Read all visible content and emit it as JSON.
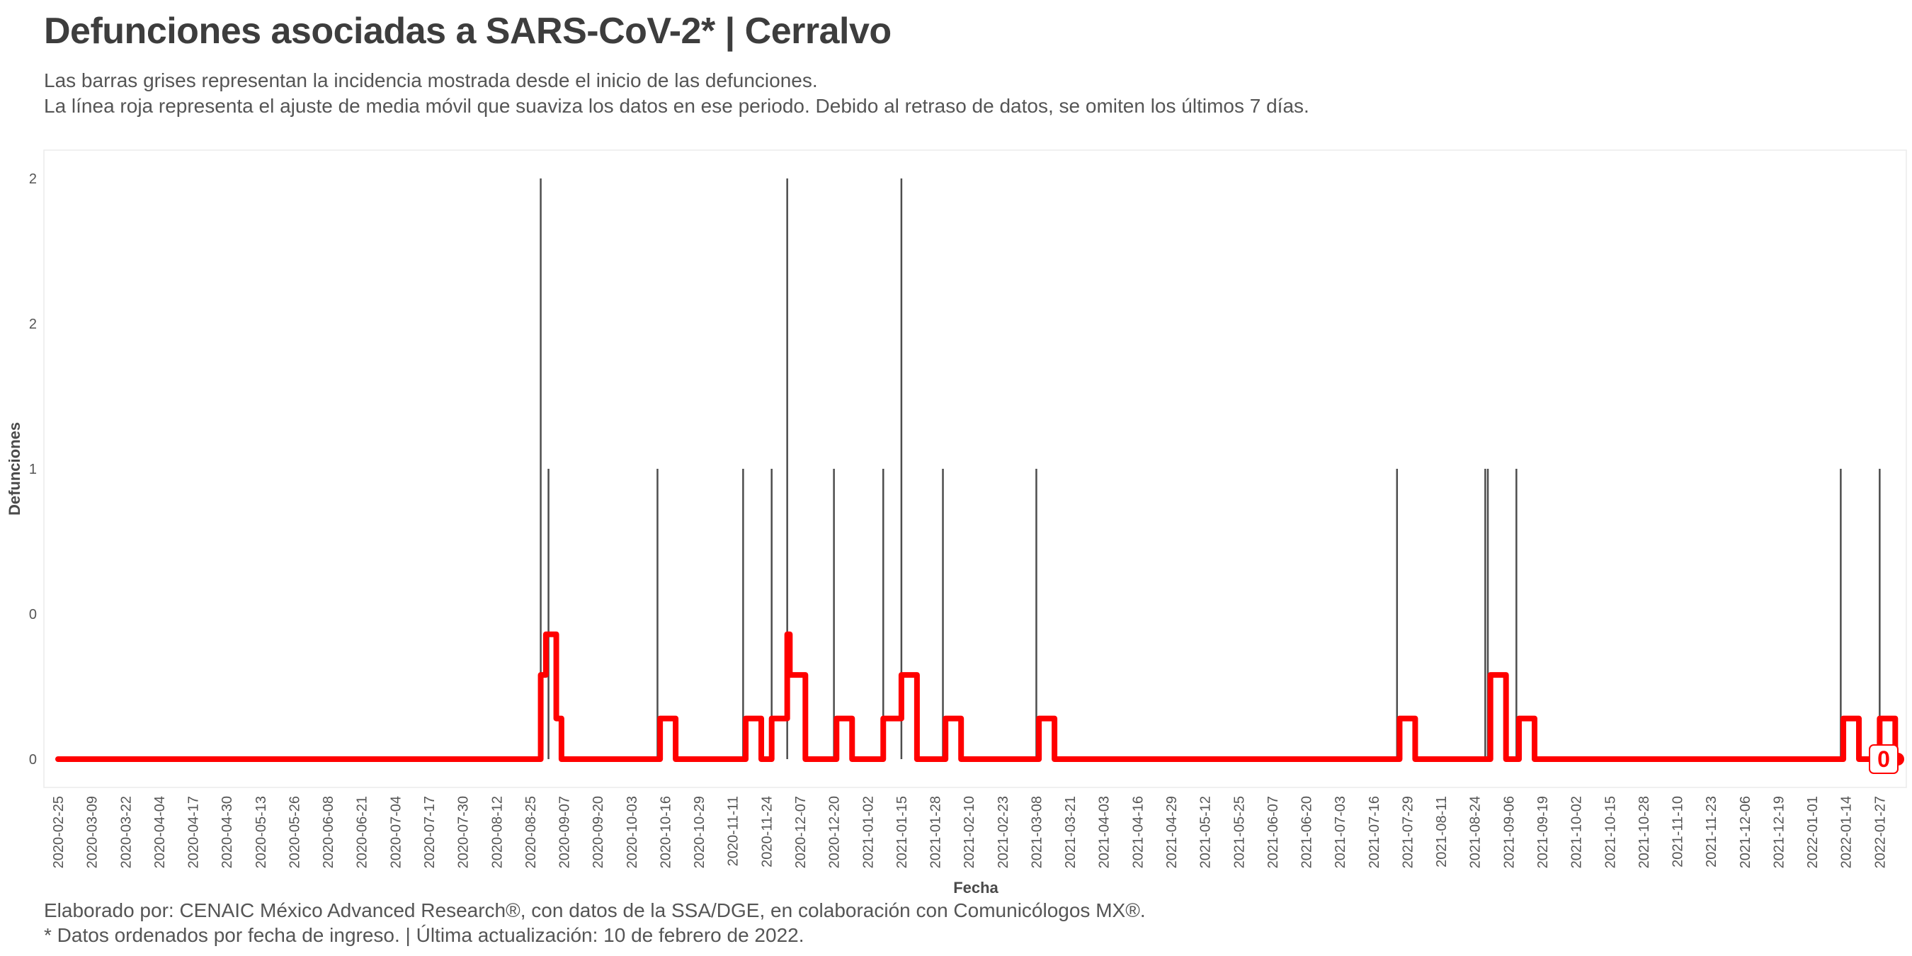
{
  "header": {
    "title": "Defunciones asociadas a SARS-CoV-2* | Cerralvo",
    "subtitle_line1": "Las barras grises representan la incidencia mostrada desde el inicio de las defunciones.",
    "subtitle_line2": "La línea roja representa el ajuste de media móvil que suaviza los datos en ese periodo. Debido al retraso de datos, se omiten los últimos 7 días."
  },
  "footer": {
    "caption_line1": "Elaborado por: CENAIC México Advanced Research®, con datos de la SSA/DGE, en colaboración con Comunicólogos MX®.",
    "caption_line2": "* Datos ordenados por fecha de ingreso. | Última actualización: 10 de febrero de 2022."
  },
  "colors": {
    "bars": "#4d4d4d",
    "smooth_line": "#ff0000",
    "panel_border": "#ebebeb"
  },
  "chart_data": {
    "type": "bar",
    "xlabel": "Fecha",
    "ylabel": "Defunciones",
    "x_range": [
      "2020-02-25",
      "2022-02-03"
    ],
    "ylim": [
      0,
      2
    ],
    "y_tick_values": [
      0,
      0.5,
      1,
      1.5,
      2
    ],
    "y_tick_labels": [
      "0",
      "0",
      "1",
      "2",
      "2"
    ],
    "x_tick_labels": [
      "2020-02-25",
      "2020-03-09",
      "2020-03-22",
      "2020-04-04",
      "2020-04-17",
      "2020-04-30",
      "2020-05-13",
      "2020-05-26",
      "2020-06-08",
      "2020-06-21",
      "2020-07-04",
      "2020-07-17",
      "2020-07-30",
      "2020-08-12",
      "2020-08-25",
      "2020-09-07",
      "2020-09-20",
      "2020-10-03",
      "2020-10-16",
      "2020-10-29",
      "2020-11-11",
      "2020-11-24",
      "2020-12-07",
      "2020-12-20",
      "2021-01-02",
      "2021-01-15",
      "2021-01-28",
      "2021-02-10",
      "2021-02-23",
      "2021-03-08",
      "2021-03-21",
      "2021-04-03",
      "2021-04-16",
      "2021-04-29",
      "2021-05-12",
      "2021-05-25",
      "2021-06-07",
      "2021-06-20",
      "2021-07-03",
      "2021-07-16",
      "2021-07-29",
      "2021-08-11",
      "2021-08-24",
      "2021-09-06",
      "2021-09-19",
      "2021-10-02",
      "2021-10-15",
      "2021-10-28",
      "2021-11-10",
      "2021-11-23",
      "2021-12-06",
      "2021-12-19",
      "2022-01-01",
      "2022-01-14",
      "2022-01-27"
    ],
    "grid": false,
    "bars": [
      {
        "x": "2020-08-29",
        "value": 2
      },
      {
        "x": "2020-09-01",
        "value": 1
      },
      {
        "x": "2020-10-13",
        "value": 1
      },
      {
        "x": "2020-11-15",
        "value": 1
      },
      {
        "x": "2020-11-26",
        "value": 1
      },
      {
        "x": "2020-12-02",
        "value": 2
      },
      {
        "x": "2020-12-20",
        "value": 1
      },
      {
        "x": "2021-01-08",
        "value": 1
      },
      {
        "x": "2021-01-15",
        "value": 2
      },
      {
        "x": "2021-01-31",
        "value": 1
      },
      {
        "x": "2021-03-08",
        "value": 1
      },
      {
        "x": "2021-07-25",
        "value": 1
      },
      {
        "x": "2021-08-28",
        "value": 1
      },
      {
        "x": "2021-08-29",
        "value": 1
      },
      {
        "x": "2021-09-09",
        "value": 1
      },
      {
        "x": "2022-01-12",
        "value": 1
      },
      {
        "x": "2022-01-27",
        "value": 1
      }
    ],
    "series": [
      {
        "type": "step",
        "points": [
          {
            "x": "2020-02-25",
            "y": 0
          },
          {
            "x": "2020-08-28",
            "y": 0
          },
          {
            "x": "2020-08-29",
            "y": 0.29
          },
          {
            "x": "2020-08-31",
            "y": 0.43
          },
          {
            "x": "2020-09-04",
            "y": 0.14
          },
          {
            "x": "2020-09-06",
            "y": 0
          },
          {
            "x": "2020-10-13",
            "y": 0
          },
          {
            "x": "2020-10-14",
            "y": 0.14
          },
          {
            "x": "2020-10-20",
            "y": 0
          },
          {
            "x": "2020-11-15",
            "y": 0
          },
          {
            "x": "2020-11-16",
            "y": 0.14
          },
          {
            "x": "2020-11-22",
            "y": 0
          },
          {
            "x": "2020-11-25",
            "y": 0
          },
          {
            "x": "2020-11-26",
            "y": 0.14
          },
          {
            "x": "2020-12-02",
            "y": 0.43
          },
          {
            "x": "2020-12-03",
            "y": 0.29
          },
          {
            "x": "2020-12-09",
            "y": 0
          },
          {
            "x": "2020-12-20",
            "y": 0
          },
          {
            "x": "2020-12-21",
            "y": 0.14
          },
          {
            "x": "2020-12-27",
            "y": 0
          },
          {
            "x": "2021-01-07",
            "y": 0
          },
          {
            "x": "2021-01-08",
            "y": 0.14
          },
          {
            "x": "2021-01-15",
            "y": 0.29
          },
          {
            "x": "2021-01-21",
            "y": 0
          },
          {
            "x": "2021-01-31",
            "y": 0
          },
          {
            "x": "2021-02-01",
            "y": 0.14
          },
          {
            "x": "2021-02-07",
            "y": 0
          },
          {
            "x": "2021-03-08",
            "y": 0
          },
          {
            "x": "2021-03-09",
            "y": 0.14
          },
          {
            "x": "2021-03-15",
            "y": 0
          },
          {
            "x": "2021-07-25",
            "y": 0
          },
          {
            "x": "2021-07-26",
            "y": 0.14
          },
          {
            "x": "2021-08-01",
            "y": 0
          },
          {
            "x": "2021-08-28",
            "y": 0
          },
          {
            "x": "2021-08-30",
            "y": 0.29
          },
          {
            "x": "2021-09-05",
            "y": 0
          },
          {
            "x": "2021-09-09",
            "y": 0
          },
          {
            "x": "2021-09-10",
            "y": 0.14
          },
          {
            "x": "2021-09-16",
            "y": 0
          },
          {
            "x": "2022-01-12",
            "y": 0
          },
          {
            "x": "2022-01-13",
            "y": 0.14
          },
          {
            "x": "2022-01-19",
            "y": 0
          },
          {
            "x": "2022-01-26",
            "y": 0
          },
          {
            "x": "2022-01-27",
            "y": 0.14
          },
          {
            "x": "2022-02-02",
            "y": 0
          },
          {
            "x": "2022-02-03",
            "y": 0
          }
        ]
      }
    ],
    "end_label": "0"
  }
}
